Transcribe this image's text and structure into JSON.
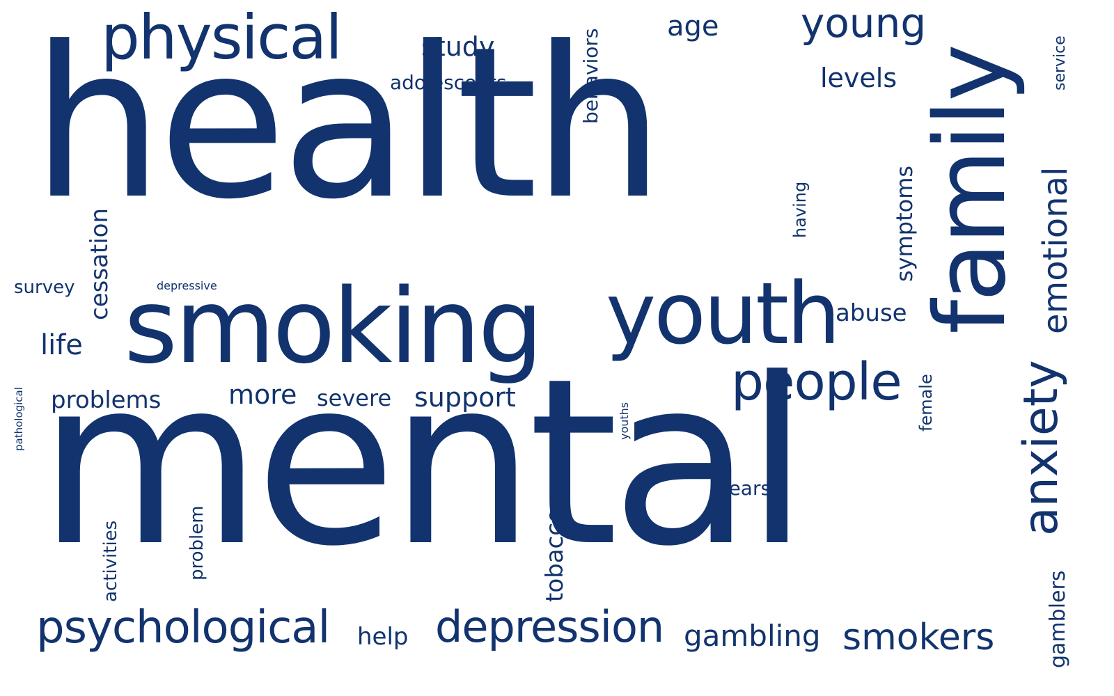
{
  "word_color": "#12336e",
  "background": "#ffffff",
  "words": {
    "health": "health",
    "mental": "mental",
    "smoking": "smoking",
    "family": "family",
    "youth": "youth",
    "physical": "physical",
    "people": "people",
    "depression": "depression",
    "psychological": "psychological",
    "anxiety": "anxiety",
    "emotional": "emotional",
    "smokers": "smokers",
    "young": "young",
    "gambling": "gambling",
    "support": "support",
    "cessation": "cessation",
    "symptoms": "symptoms",
    "more": "more",
    "severe": "severe",
    "problems": "problems",
    "abuse": "abuse",
    "study": "study",
    "age": "age",
    "levels": "levels",
    "adolescents": "adolescents",
    "behaviors": "behaviors",
    "tobacco": "tobacco",
    "help": "help",
    "life": "life",
    "years": "years",
    "survey": "survey",
    "activities": "activities",
    "problem": "problem",
    "gamblers": "gamblers",
    "having": "having",
    "female": "female",
    "service": "service",
    "depressive": "depressive",
    "youths": "youths",
    "pathological": "pathological"
  }
}
